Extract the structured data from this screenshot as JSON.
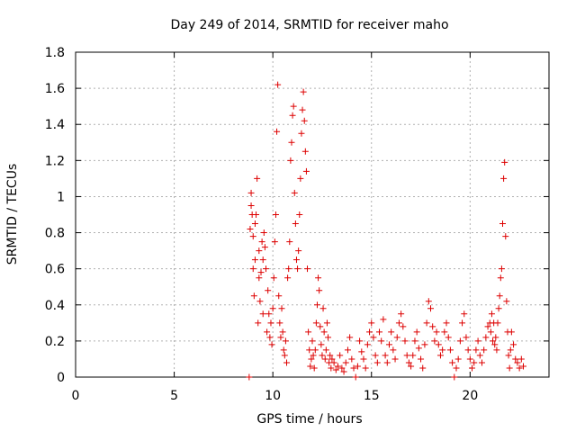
{
  "chart_data": {
    "type": "scatter",
    "title": "Day 249 of 2014, SRMTID for receiver maho",
    "xlabel": "GPS time / hours",
    "ylabel": "SRMTID / TECUs",
    "xlim": [
      0,
      24
    ],
    "ylim": [
      0,
      1.8
    ],
    "x_ticks": [
      0,
      5,
      10,
      15,
      20
    ],
    "x_tick_labels": [
      "0",
      "5",
      "10",
      "15",
      "20"
    ],
    "y_ticks": [
      0,
      0.2,
      0.4,
      0.6,
      0.8,
      1.0,
      1.2,
      1.4,
      1.6,
      1.8
    ],
    "y_tick_labels": [
      "0",
      "0.2",
      "0.4",
      "0.6",
      "0.8",
      "1",
      "1.2",
      "1.4",
      "1.6",
      "1.8"
    ],
    "grid": true,
    "marker": "+",
    "color": "#dd0000",
    "series": [
      {
        "name": "SRMTID",
        "x": [
          8.8,
          8.85,
          8.9,
          8.9,
          8.95,
          9.0,
          9.0,
          9.05,
          9.1,
          9.1,
          9.15,
          9.2,
          9.25,
          9.3,
          9.3,
          9.35,
          9.4,
          9.45,
          9.5,
          9.5,
          9.55,
          9.6,
          9.65,
          9.7,
          9.75,
          9.8,
          9.85,
          9.9,
          9.95,
          10.0,
          10.05,
          10.1,
          10.15,
          10.2,
          10.25,
          10.3,
          10.35,
          10.4,
          10.45,
          10.5,
          10.55,
          10.6,
          10.65,
          10.7,
          10.75,
          10.8,
          10.85,
          10.9,
          10.95,
          11.0,
          11.05,
          11.1,
          11.15,
          11.2,
          11.25,
          11.3,
          11.35,
          11.4,
          11.45,
          11.5,
          11.55,
          11.6,
          11.65,
          11.7,
          11.75,
          11.8,
          11.85,
          11.9,
          11.95,
          12.0,
          12.05,
          12.1,
          12.15,
          12.2,
          12.25,
          12.3,
          12.35,
          12.4,
          12.45,
          12.5,
          12.55,
          12.6,
          12.65,
          12.7,
          12.75,
          12.8,
          12.85,
          12.9,
          12.95,
          13.0,
          13.1,
          13.2,
          13.3,
          13.4,
          13.5,
          13.6,
          13.7,
          13.8,
          13.9,
          14.0,
          14.1,
          14.2,
          14.3,
          14.4,
          14.5,
          14.6,
          14.7,
          14.8,
          14.9,
          15.0,
          15.1,
          15.2,
          15.3,
          15.4,
          15.5,
          15.6,
          15.7,
          15.8,
          15.9,
          16.0,
          16.1,
          16.2,
          16.3,
          16.4,
          16.5,
          16.6,
          16.7,
          16.8,
          16.9,
          17.0,
          17.1,
          17.2,
          17.3,
          17.4,
          17.5,
          17.6,
          17.7,
          17.8,
          17.9,
          18.0,
          18.1,
          18.2,
          18.3,
          18.4,
          18.5,
          18.6,
          18.7,
          18.8,
          18.9,
          19.0,
          19.1,
          19.2,
          19.3,
          19.4,
          19.5,
          19.6,
          19.7,
          19.8,
          19.9,
          20.0,
          20.1,
          20.2,
          20.3,
          20.4,
          20.5,
          20.6,
          20.7,
          20.8,
          20.9,
          21.0,
          21.05,
          21.1,
          21.15,
          21.2,
          21.25,
          21.3,
          21.35,
          21.4,
          21.45,
          21.5,
          21.55,
          21.6,
          21.65,
          21.7,
          21.75,
          21.8,
          21.85,
          21.9,
          21.95,
          22.0,
          22.05,
          22.1,
          22.2,
          22.3,
          22.4,
          22.5,
          22.6,
          22.7
        ],
        "y": [
          0.0,
          0.82,
          0.95,
          1.02,
          0.9,
          0.78,
          0.6,
          0.45,
          0.85,
          0.65,
          0.9,
          1.1,
          0.3,
          0.55,
          0.7,
          0.42,
          0.58,
          0.75,
          0.35,
          0.65,
          0.8,
          0.72,
          0.6,
          0.25,
          0.48,
          0.35,
          0.22,
          0.3,
          0.18,
          0.38,
          0.55,
          0.75,
          0.9,
          1.36,
          1.62,
          0.45,
          0.3,
          0.22,
          0.38,
          0.25,
          0.15,
          0.12,
          0.2,
          0.08,
          0.55,
          0.6,
          0.75,
          1.2,
          1.3,
          1.45,
          1.5,
          1.02,
          0.85,
          0.65,
          0.6,
          0.7,
          0.9,
          1.1,
          1.35,
          1.48,
          1.58,
          1.42,
          1.25,
          1.14,
          0.6,
          0.25,
          0.15,
          0.06,
          0.1,
          0.2,
          0.12,
          0.05,
          0.15,
          0.3,
          0.4,
          0.55,
          0.48,
          0.28,
          0.18,
          0.12,
          0.38,
          0.25,
          0.1,
          0.15,
          0.3,
          0.22,
          0.08,
          0.12,
          0.05,
          0.1,
          0.08,
          0.04,
          0.06,
          0.12,
          0.05,
          0.03,
          0.08,
          0.15,
          0.22,
          0.1,
          0.05,
          0.0,
          0.06,
          0.2,
          0.14,
          0.1,
          0.05,
          0.18,
          0.25,
          0.3,
          0.22,
          0.12,
          0.08,
          0.25,
          0.2,
          0.32,
          0.12,
          0.08,
          0.18,
          0.25,
          0.15,
          0.1,
          0.22,
          0.3,
          0.35,
          0.28,
          0.2,
          0.12,
          0.08,
          0.06,
          0.12,
          0.2,
          0.25,
          0.16,
          0.1,
          0.05,
          0.18,
          0.3,
          0.42,
          0.38,
          0.28,
          0.2,
          0.25,
          0.18,
          0.12,
          0.15,
          0.25,
          0.3,
          0.22,
          0.15,
          0.08,
          0.0,
          0.05,
          0.1,
          0.2,
          0.3,
          0.35,
          0.22,
          0.15,
          0.1,
          0.05,
          0.08,
          0.15,
          0.2,
          0.12,
          0.08,
          0.15,
          0.22,
          0.28,
          0.3,
          0.25,
          0.35,
          0.2,
          0.3,
          0.18,
          0.22,
          0.15,
          0.3,
          0.38,
          0.45,
          0.55,
          0.6,
          0.85,
          1.1,
          1.19,
          0.78,
          0.42,
          0.25,
          0.12,
          0.05,
          0.15,
          0.25,
          0.18,
          0.1,
          0.08,
          0.05,
          0.1,
          0.06
        ]
      }
    ]
  }
}
